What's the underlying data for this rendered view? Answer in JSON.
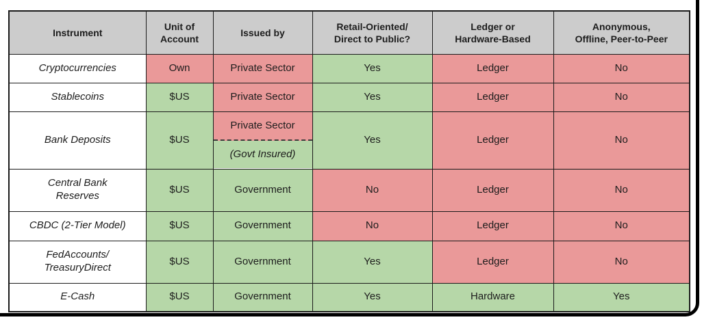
{
  "colors": {
    "header_bg": "#cccccc",
    "green": "#b6d7a8",
    "red": "#ea9999",
    "white": "#ffffff",
    "frame_border": "#000000",
    "grid_line": "#1a1a1a",
    "text": "#1c1c1c"
  },
  "chart_data": {
    "type": "table",
    "title": "",
    "columns": [
      "Instrument",
      "Unit of Account",
      "Issued by",
      "Retail-Oriented/Direct to Public?",
      "Ledger or Hardware-Based",
      "Anonymous, Offline, Peer-to-Peer"
    ],
    "rows": [
      [
        "Cryptocurrencies",
        "Own",
        "Private Sector",
        "Yes",
        "Ledger",
        "No"
      ],
      [
        "Stablecoins",
        "$US",
        "Private Sector",
        "Yes",
        "Ledger",
        "No"
      ],
      [
        "Bank Deposits",
        "$US",
        "Private Sector (Govt Insured)",
        "Yes",
        "Ledger",
        "No"
      ],
      [
        "Central Bank Reserves",
        "$US",
        "Government",
        "No",
        "Ledger",
        "No"
      ],
      [
        "CBDC (2-Tier Model)",
        "$US",
        "Government",
        "No",
        "Ledger",
        "No"
      ],
      [
        "FedAccounts/TreasuryDirect",
        "$US",
        "Government",
        "Yes",
        "Ledger",
        "No"
      ],
      [
        "E-Cash",
        "$US",
        "Government",
        "Yes",
        "Hardware",
        "Yes"
      ]
    ],
    "cell_colors": [
      [
        "white",
        "red",
        "red",
        "green",
        "red",
        "red"
      ],
      [
        "white",
        "green",
        "red",
        "green",
        "red",
        "red"
      ],
      [
        "white",
        "green",
        "red-over-green",
        "green",
        "red",
        "red"
      ],
      [
        "white",
        "green",
        "green",
        "red",
        "red",
        "red"
      ],
      [
        "white",
        "green",
        "green",
        "red",
        "red",
        "red"
      ],
      [
        "white",
        "green",
        "green",
        "green",
        "red",
        "red"
      ],
      [
        "white",
        "green",
        "green",
        "green",
        "green",
        "green"
      ]
    ],
    "legend_position": "none",
    "grid": true
  },
  "table": {
    "headers": [
      "Instrument",
      "Unit of\nAccount",
      "Issued by",
      "Retail-Oriented/\nDirect to Public?",
      "Ledger or\nHardware-Based",
      "Anonymous,\nOffline, Peer-to-Peer"
    ],
    "rows": [
      {
        "cells": [
          {
            "text": "Cryptocurrencies",
            "bg": "white"
          },
          {
            "text": "Own",
            "bg": "red"
          },
          {
            "text": "Private Sector",
            "bg": "red"
          },
          {
            "text": "Yes",
            "bg": "green"
          },
          {
            "text": "Ledger",
            "bg": "red"
          },
          {
            "text": "No",
            "bg": "red"
          }
        ]
      },
      {
        "cells": [
          {
            "text": "Stablecoins",
            "bg": "white"
          },
          {
            "text": "$US",
            "bg": "green"
          },
          {
            "text": "Private Sector",
            "bg": "red"
          },
          {
            "text": "Yes",
            "bg": "green"
          },
          {
            "text": "Ledger",
            "bg": "red"
          },
          {
            "text": "No",
            "bg": "red"
          }
        ]
      },
      {
        "cells": [
          {
            "text": "Bank Deposits",
            "bg": "white"
          },
          {
            "text": "$US",
            "bg": "green"
          },
          {
            "split": {
              "top": {
                "text": "Private Sector",
                "bg": "red",
                "italic": false
              },
              "bottom": {
                "text": "(Govt Insured)",
                "bg": "green",
                "italic": true
              }
            }
          },
          {
            "text": "Yes",
            "bg": "green"
          },
          {
            "text": "Ledger",
            "bg": "red"
          },
          {
            "text": "No",
            "bg": "red"
          }
        ]
      },
      {
        "cells": [
          {
            "text": "Central Bank\nReserves",
            "bg": "white"
          },
          {
            "text": "$US",
            "bg": "green"
          },
          {
            "text": "Government",
            "bg": "green"
          },
          {
            "text": "No",
            "bg": "red"
          },
          {
            "text": "Ledger",
            "bg": "red"
          },
          {
            "text": "No",
            "bg": "red"
          }
        ]
      },
      {
        "cells": [
          {
            "text": "CBDC (2-Tier Model)",
            "bg": "white"
          },
          {
            "text": "$US",
            "bg": "green"
          },
          {
            "text": "Government",
            "bg": "green"
          },
          {
            "text": "No",
            "bg": "red"
          },
          {
            "text": "Ledger",
            "bg": "red"
          },
          {
            "text": "No",
            "bg": "red"
          }
        ]
      },
      {
        "cells": [
          {
            "text": "FedAccounts/\nTreasuryDirect",
            "bg": "white"
          },
          {
            "text": "$US",
            "bg": "green"
          },
          {
            "text": "Government",
            "bg": "green"
          },
          {
            "text": "Yes",
            "bg": "green"
          },
          {
            "text": "Ledger",
            "bg": "red"
          },
          {
            "text": "No",
            "bg": "red"
          }
        ]
      },
      {
        "cells": [
          {
            "text": "E-Cash",
            "bg": "white"
          },
          {
            "text": "$US",
            "bg": "green"
          },
          {
            "text": "Government",
            "bg": "green"
          },
          {
            "text": "Yes",
            "bg": "green"
          },
          {
            "text": "Hardware",
            "bg": "green"
          },
          {
            "text": "Yes",
            "bg": "green"
          }
        ]
      }
    ]
  }
}
